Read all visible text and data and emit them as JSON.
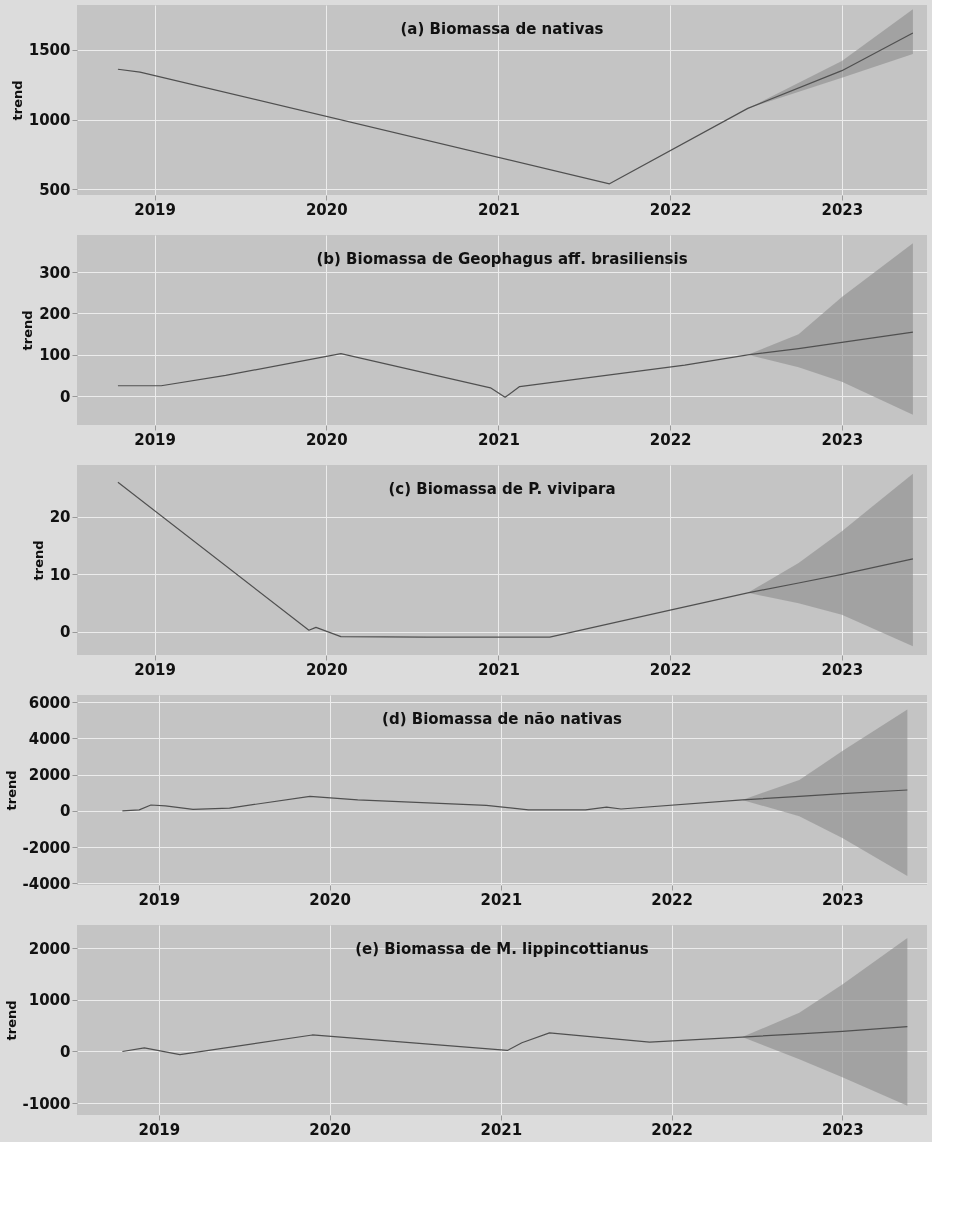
{
  "chart_data": [
    {
      "type": "line",
      "title": "(a) Biomassa de nativas",
      "ylabel": "trend",
      "grid": true,
      "xlim": [
        "2018-07-20",
        "2023-07-01"
      ],
      "xticks": [
        "2019",
        "2020",
        "2021",
        "2022",
        "2023"
      ],
      "ylim": [
        460,
        1820
      ],
      "yticks": [
        500,
        1000,
        1500
      ],
      "series": [
        {
          "color": "#505050",
          "x": [
            "2018-10-15",
            "2018-12-01",
            "2021-08-25",
            "2022-06-15",
            "2023-01-01",
            "2023-06-01"
          ],
          "values": [
            1360,
            1340,
            540,
            1080,
            1350,
            1620
          ],
          "lower": [
            null,
            null,
            null,
            1080,
            1300,
            1470
          ],
          "upper": [
            null,
            null,
            null,
            1080,
            1420,
            1790
          ]
        }
      ]
    },
    {
      "type": "line",
      "title": "(b) Biomassa de Geophagus aff. brasiliensis",
      "ylabel": "trend",
      "grid": true,
      "xlim": [
        "2018-07-20",
        "2023-07-01"
      ],
      "xticks": [
        "2019",
        "2020",
        "2021",
        "2022",
        "2023"
      ],
      "ylim": [
        -70,
        390
      ],
      "yticks": [
        0,
        100,
        200,
        300
      ],
      "series": [
        {
          "color": "#505050",
          "x": [
            "2018-10-15",
            "2019-01-15",
            "2019-06-01",
            "2020-02-01",
            "2020-12-15",
            "2021-01-15",
            "2021-02-15",
            "2022-02-01",
            "2022-06-15",
            "2022-10-01",
            "2023-01-01",
            "2023-06-01"
          ],
          "values": [
            25,
            25,
            50,
            103,
            20,
            -3,
            23,
            75,
            100,
            115,
            130,
            155
          ],
          "lower": [
            null,
            null,
            null,
            null,
            null,
            null,
            null,
            null,
            100,
            70,
            35,
            -45
          ],
          "upper": [
            null,
            null,
            null,
            null,
            null,
            null,
            null,
            null,
            100,
            150,
            240,
            370
          ]
        }
      ]
    },
    {
      "type": "line",
      "title": "(c) Biomassa de P. vivipara",
      "ylabel": "trend",
      "grid": true,
      "xlim": [
        "2018-07-20",
        "2023-07-01"
      ],
      "xticks": [
        "2019",
        "2020",
        "2021",
        "2022",
        "2023"
      ],
      "ylim": [
        -4,
        29
      ],
      "yticks": [
        0,
        10,
        20
      ],
      "series": [
        {
          "color": "#505050",
          "x": [
            "2018-10-15",
            "2019-11-25",
            "2019-12-10",
            "2020-02-01",
            "2020-08-01",
            "2021-04-20",
            "2022-01-01",
            "2022-06-15",
            "2022-10-01",
            "2023-01-01",
            "2023-06-01"
          ],
          "values": [
            26,
            0.3,
            0.8,
            -0.8,
            -0.9,
            -0.9,
            3.8,
            6.8,
            8.5,
            10,
            12.7
          ],
          "lower": [
            null,
            null,
            null,
            null,
            null,
            null,
            null,
            6.8,
            5,
            3,
            -2.5
          ],
          "upper": [
            null,
            null,
            null,
            null,
            null,
            null,
            null,
            6.8,
            12,
            17.5,
            27.5
          ]
        }
      ]
    },
    {
      "type": "line",
      "title": "(d) Biomassa de não nativas",
      "ylabel": "trend",
      "grid": true,
      "xlim": [
        "2018-07-10",
        "2023-07-01"
      ],
      "xticks": [
        "2019",
        "2020",
        "2021",
        "2022",
        "2023"
      ],
      "ylim": [
        -4100,
        6400
      ],
      "yticks": [
        -4000,
        -2000,
        0,
        2000,
        4000,
        6000
      ],
      "series": [
        {
          "color": "#505050",
          "x": [
            "2018-10-15",
            "2018-11-20",
            "2018-12-15",
            "2019-01-15",
            "2019-03-15",
            "2019-06-01",
            "2019-11-20",
            "2020-03-01",
            "2020-12-01",
            "2021-03-01",
            "2021-07-01",
            "2021-08-15",
            "2021-09-15",
            "2022-06-01",
            "2022-10-01",
            "2023-01-01",
            "2023-05-20"
          ],
          "values": [
            0,
            50,
            320,
            270,
            80,
            150,
            800,
            600,
            300,
            50,
            50,
            200,
            100,
            600,
            800,
            950,
            1150
          ],
          "lower": [
            null,
            null,
            null,
            null,
            null,
            null,
            null,
            null,
            null,
            null,
            null,
            null,
            null,
            600,
            -300,
            -1500,
            -3600
          ],
          "upper": [
            null,
            null,
            null,
            null,
            null,
            null,
            null,
            null,
            null,
            null,
            null,
            null,
            null,
            600,
            1700,
            3300,
            5600
          ]
        }
      ]
    },
    {
      "type": "line",
      "title": "(e) Biomassa de M. lippincottianus",
      "ylabel": "trend",
      "grid": true,
      "xlim": [
        "2018-07-10",
        "2023-07-01"
      ],
      "xticks": [
        "2019",
        "2020",
        "2021",
        "2022",
        "2023"
      ],
      "ylim": [
        -1230,
        2450
      ],
      "yticks": [
        -1000,
        0,
        1000,
        2000
      ],
      "series": [
        {
          "color": "#505050",
          "x": [
            "2018-10-15",
            "2018-12-01",
            "2019-02-15",
            "2019-11-25",
            "2021-01-15",
            "2021-02-15",
            "2021-04-15",
            "2021-11-15",
            "2022-06-01",
            "2022-10-01",
            "2023-01-01",
            "2023-05-20"
          ],
          "values": [
            0,
            70,
            -60,
            320,
            20,
            170,
            360,
            180,
            280,
            340,
            390,
            480
          ],
          "lower": [
            null,
            null,
            null,
            null,
            null,
            null,
            null,
            null,
            280,
            -150,
            -500,
            -1050
          ],
          "upper": [
            null,
            null,
            null,
            null,
            null,
            null,
            null,
            null,
            280,
            750,
            1300,
            2200
          ]
        }
      ]
    }
  ]
}
